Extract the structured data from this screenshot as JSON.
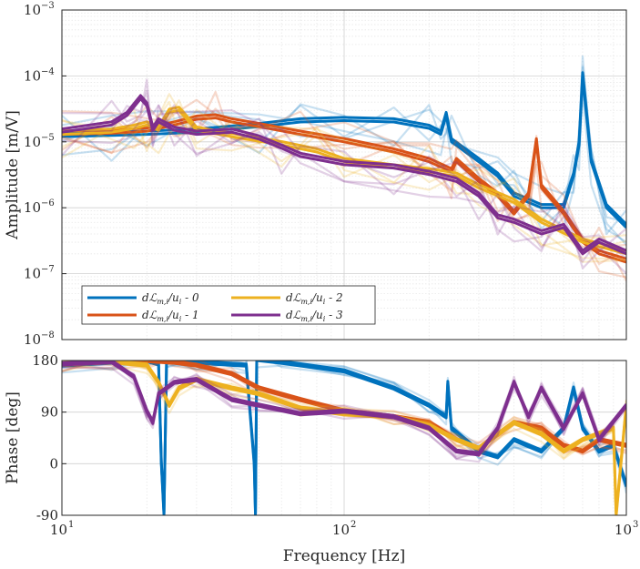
{
  "chart_data": [
    {
      "type": "line",
      "panel": "amplitude",
      "xscale": "log",
      "yscale": "log",
      "xlim": [
        10,
        1000
      ],
      "ylim": [
        1e-08,
        0.001
      ],
      "grid": true,
      "ylabel": "Amplitude [m/V]",
      "yticks": [
        1e-08,
        1e-07,
        1e-06,
        1e-05,
        0.0001,
        0.001
      ],
      "ytick_labels": [
        {
          "base": "10",
          "exp": "−8"
        },
        {
          "base": "10",
          "exp": "−7"
        },
        {
          "base": "10",
          "exp": "−6"
        },
        {
          "base": "10",
          "exp": "−5"
        },
        {
          "base": "10",
          "exp": "−4"
        },
        {
          "base": "10",
          "exp": "−3"
        }
      ],
      "legend_position": "lower-left",
      "series": [
        {
          "name": "dℒ_{m,i}/u_i - 0",
          "legend_main": "dℒ",
          "legend_sub": "m,i",
          "legend_div": "/u",
          "legend_sub2": "i",
          "legend_suffix": " - 0",
          "color": "#0072BD",
          "x": [
            10,
            15,
            20,
            30,
            50,
            70,
            100,
            150,
            200,
            220,
            230,
            240,
            300,
            350,
            400,
            500,
            600,
            650,
            680,
            700,
            750,
            850,
            1000
          ],
          "y": [
            1.2e-05,
            1.25e-05,
            1.3e-05,
            1.4e-05,
            1.7e-05,
            2e-05,
            2.1e-05,
            2e-05,
            1.6e-05,
            1.3e-05,
            2.5e-05,
            1e-05,
            5e-06,
            3e-06,
            1.5e-06,
            1e-06,
            1e-06,
            3e-06,
            9e-06,
            0.0001,
            5e-06,
            1e-06,
            5e-07
          ]
        },
        {
          "name": "dℒ_{m,i}/u_i - 1",
          "legend_main": "dℒ",
          "legend_sub": "m,i",
          "legend_div": "/u",
          "legend_sub2": "i",
          "legend_suffix": " - 1",
          "color": "#D95319",
          "x": [
            10,
            15,
            20,
            25,
            30,
            35,
            40,
            50,
            70,
            100,
            150,
            200,
            240,
            250,
            300,
            350,
            400,
            450,
            480,
            500,
            600,
            700,
            800,
            1000
          ],
          "y": [
            1.3e-05,
            1.35e-05,
            1.45e-05,
            1.8e-05,
            2.2e-05,
            2.3e-05,
            2e-05,
            1.7e-05,
            1.3e-05,
            1e-05,
            7e-06,
            5e-06,
            3.5e-06,
            5e-06,
            2.5e-06,
            1.5e-06,
            8e-07,
            1.5e-06,
            1e-05,
            2e-06,
            8e-07,
            3e-07,
            2e-07,
            1.5e-07
          ]
        },
        {
          "name": "dℒ_{m,i}/u_i - 2",
          "legend_main": "dℒ",
          "legend_sub": "m,i",
          "legend_div": "/u",
          "legend_sub2": "i",
          "legend_suffix": " - 2",
          "color": "#EDB120",
          "x": [
            10,
            15,
            18,
            20,
            22,
            24,
            26,
            30,
            40,
            60,
            80,
            100,
            150,
            200,
            250,
            300,
            400,
            500,
            700,
            1000
          ],
          "y": [
            1.3e-05,
            1.4e-05,
            1.6e-05,
            1.8e-05,
            1.5e-05,
            2.8e-05,
            3e-05,
            1.5e-05,
            1.2e-05,
            9e-06,
            7e-06,
            5e-06,
            4e-06,
            3.5e-06,
            3e-06,
            2e-06,
            1.2e-06,
            6e-07,
            3e-07,
            2e-07
          ]
        },
        {
          "name": "dℒ_{m,i}/u_i - 3",
          "legend_main": "dℒ",
          "legend_sub": "m,i",
          "legend_div": "/u",
          "legend_sub2": "i",
          "legend_suffix": " - 3",
          "color": "#7E2F8E",
          "x": [
            10,
            15,
            17,
            19,
            20,
            21,
            22,
            25,
            30,
            40,
            50,
            60,
            70,
            100,
            150,
            200,
            250,
            300,
            350,
            400,
            500,
            600,
            700,
            800,
            1000
          ],
          "y": [
            1.4e-05,
            1.8e-05,
            2.5e-05,
            4.5e-05,
            3.5e-05,
            1.5e-05,
            2e-05,
            1.5e-05,
            1.3e-05,
            1.4e-05,
            1.1e-05,
            8e-06,
            6e-06,
            4.5e-06,
            4e-06,
            3.2e-06,
            2.5e-06,
            1.5e-06,
            7e-07,
            6e-07,
            4e-07,
            5e-07,
            2e-07,
            3e-07,
            2e-07
          ]
        }
      ]
    },
    {
      "type": "line",
      "panel": "phase",
      "xscale": "log",
      "xlim": [
        10,
        1000
      ],
      "ylim": [
        -90,
        180
      ],
      "grid": true,
      "ylabel": "Phase [deg]",
      "xlabel": "Frequency [Hz]",
      "yticks": [
        -90,
        0,
        90,
        180
      ],
      "ytick_labels": [
        "-90",
        "0",
        "90",
        "180"
      ],
      "xticks": [
        10,
        100,
        1000
      ],
      "xtick_labels": [
        {
          "base": "10",
          "exp": "1"
        },
        {
          "base": "10",
          "exp": "2"
        },
        {
          "base": "10",
          "exp": "3"
        }
      ],
      "series": [
        {
          "name": "0",
          "color": "#0072BD",
          "x": [
            10,
            15,
            20,
            22,
            22.5,
            23,
            23.5,
            30,
            45,
            48,
            48.5,
            49,
            60,
            100,
            150,
            200,
            230,
            233,
            240,
            300,
            350,
            400,
            500,
            600,
            650,
            700,
            800,
            900,
            1000
          ],
          "y": [
            170,
            175,
            178,
            172,
            0,
            -90,
            180,
            175,
            170,
            0,
            -90,
            180,
            175,
            160,
            130,
            100,
            80,
            140,
            60,
            20,
            10,
            40,
            20,
            60,
            130,
            60,
            20,
            30,
            -40
          ]
        },
        {
          "name": "1",
          "color": "#D95319",
          "x": [
            10,
            15,
            20,
            25,
            30,
            40,
            50,
            70,
            100,
            150,
            200,
            250,
            300,
            400,
            500,
            600,
            700,
            800,
            1000
          ],
          "y": [
            172,
            176,
            178,
            175,
            170,
            155,
            130,
            110,
            90,
            80,
            70,
            40,
            25,
            70,
            60,
            30,
            20,
            40,
            30
          ]
        },
        {
          "name": "2",
          "color": "#EDB120",
          "x": [
            10,
            15,
            20,
            22,
            24,
            26,
            30,
            40,
            50,
            70,
            100,
            150,
            200,
            250,
            300,
            400,
            500,
            600,
            700,
            900,
            920,
            1000
          ],
          "y": [
            172,
            176,
            170,
            140,
            100,
            130,
            145,
            130,
            120,
            95,
            85,
            80,
            65,
            40,
            25,
            70,
            50,
            20,
            40,
            60,
            -90,
            100
          ]
        },
        {
          "name": "3",
          "color": "#7E2F8E",
          "x": [
            10,
            15,
            18,
            20,
            21,
            22,
            25,
            30,
            40,
            50,
            70,
            100,
            150,
            200,
            250,
            300,
            350,
            400,
            450,
            500,
            600,
            700,
            800,
            1000
          ],
          "y": [
            172,
            176,
            150,
            90,
            70,
            120,
            140,
            145,
            110,
            100,
            85,
            90,
            80,
            60,
            20,
            15,
            60,
            140,
            80,
            130,
            60,
            120,
            40,
            100
          ]
        }
      ]
    }
  ]
}
